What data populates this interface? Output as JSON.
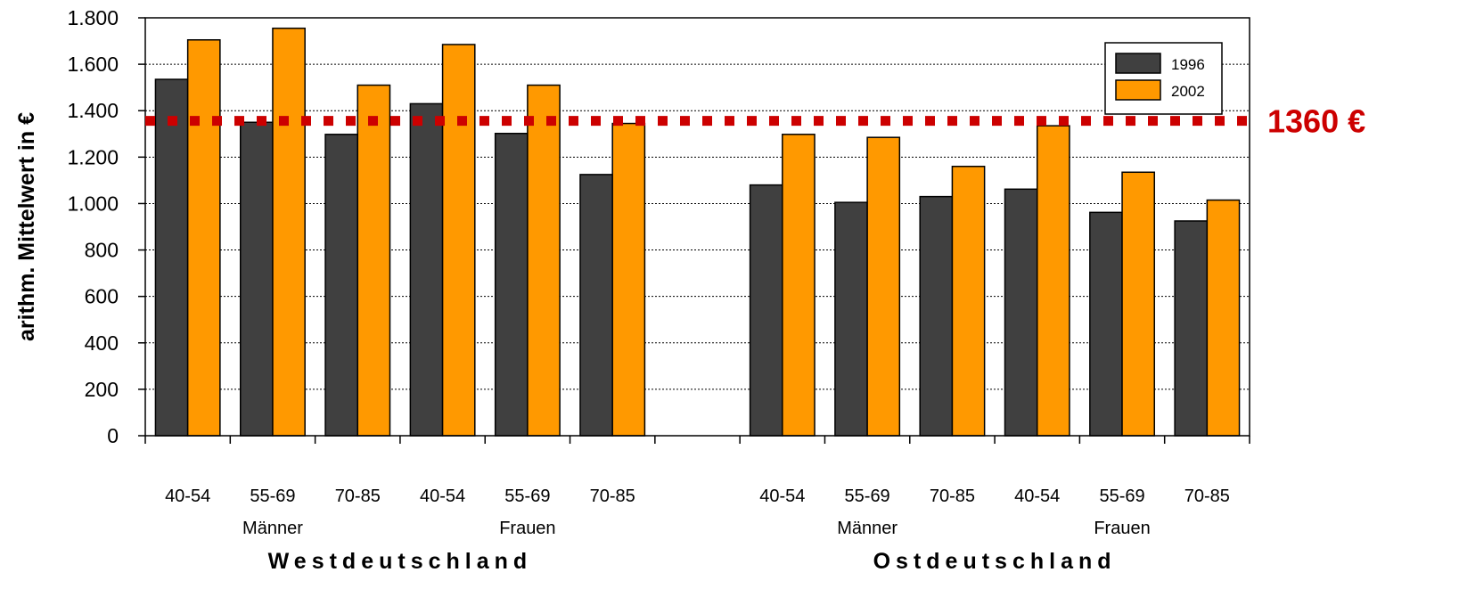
{
  "chart_data": {
    "type": "bar",
    "ylabel": "arithm. Mittelwert in €",
    "ylim": [
      0,
      1800
    ],
    "yticks": [
      0,
      200,
      400,
      600,
      800,
      1000,
      1200,
      1400,
      1600,
      1800
    ],
    "ytick_labels": [
      "0",
      "200",
      "400",
      "600",
      "800",
      "1.000",
      "1.200",
      "1.400",
      "1.600",
      "1.800"
    ],
    "grid": true,
    "legend_position": "top-right",
    "categories": [
      "40-54",
      "55-69",
      "70-85",
      "40-54",
      "55-69",
      "70-85",
      "",
      "40-54",
      "55-69",
      "70-85",
      "40-54",
      "55-69",
      "70-85"
    ],
    "groups": [
      "Männer",
      "Frauen",
      "Männer",
      "Frauen"
    ],
    "regions": [
      "Westdeutschland",
      "Ostdeutschland"
    ],
    "series": [
      {
        "name": "1996",
        "color": "#404040",
        "values": [
          1535,
          1350,
          1298,
          1430,
          1302,
          1125,
          null,
          1080,
          1005,
          1030,
          1062,
          962,
          925
        ]
      },
      {
        "name": "2002",
        "color": "#ff9900",
        "values": [
          1705,
          1755,
          1510,
          1685,
          1510,
          1345,
          null,
          1298,
          1285,
          1160,
          1335,
          1135,
          1015
        ]
      }
    ],
    "reference_line": {
      "value": 1360,
      "label": "1360 €",
      "color": "#cc0000"
    }
  }
}
